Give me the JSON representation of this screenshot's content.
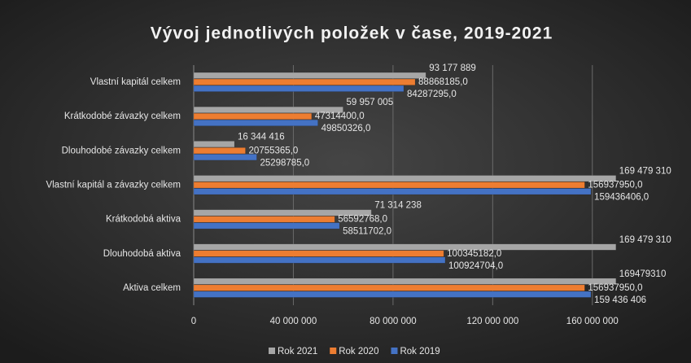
{
  "chart_data": {
    "type": "bar",
    "orientation": "horizontal",
    "title": "Vývoj jednotlivých položek v čase, 2019-2021",
    "categories": [
      "Vlastní kapitál celkem",
      "Krátkodobé závazky celkem",
      "Dlouhodobé závazky celkem",
      "Vlastní kapitál a závazky celkem",
      "Krátkodobá aktiva",
      "Dlouhodobá aktiva",
      "Aktiva celkem"
    ],
    "series": [
      {
        "name": "Rok 2021",
        "color": "#a6a6a6",
        "values": [
          93177889,
          59957005,
          16344416,
          169479310,
          71314238,
          169479310,
          169479310
        ],
        "value_labels": [
          "93 177 889",
          "59 957 005",
          "16 344 416",
          "169 479 310",
          "71 314 238",
          "169 479 310",
          "169479310"
        ]
      },
      {
        "name": "Rok 2020",
        "color": "#ed7d31",
        "values": [
          88868185,
          47314400,
          20755365,
          156937950,
          56592768,
          100345182,
          156937950
        ],
        "value_labels": [
          "88868185,0",
          "47314400,0",
          "20755365,0",
          "156937950,0",
          "56592768,0",
          "100345182,0",
          "156937950,0"
        ]
      },
      {
        "name": "Rok 2019",
        "color": "#4472c4",
        "values": [
          84287295,
          49850326,
          25298785,
          159436406,
          58511702,
          100924704,
          159436406
        ],
        "value_labels": [
          "84287295,0",
          "49850326,0",
          "25298785,0",
          "159436406,0",
          "58511702,0",
          "100924704,0",
          "159 436 406"
        ]
      }
    ],
    "xlim": [
      0,
      180000000
    ],
    "xticks": [
      0,
      {
        "value": 40000000,
        "label": "40 000 000"
      },
      {
        "value": 80000000,
        "label": "80 000 000"
      },
      {
        "value": 120000000,
        "label": "120 000 000"
      },
      {
        "value": 160000000,
        "label": "160 000 000"
      }
    ],
    "grid": true,
    "legend": "bottom"
  }
}
